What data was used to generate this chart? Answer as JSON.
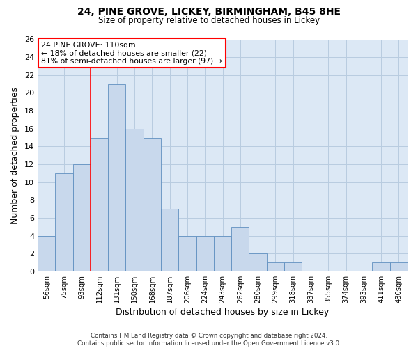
{
  "title": "24, PINE GROVE, LICKEY, BIRMINGHAM, B45 8HE",
  "subtitle": "Size of property relative to detached houses in Lickey",
  "xlabel": "Distribution of detached houses by size in Lickey",
  "ylabel": "Number of detached properties",
  "bar_color": "#c8d8ec",
  "bar_edge_color": "#6090c0",
  "bg_color": "#ffffff",
  "plot_bg_color": "#dce8f5",
  "grid_color": "#b8cce0",
  "categories": [
    "56sqm",
    "75sqm",
    "93sqm",
    "112sqm",
    "131sqm",
    "150sqm",
    "168sqm",
    "187sqm",
    "206sqm",
    "224sqm",
    "243sqm",
    "262sqm",
    "280sqm",
    "299sqm",
    "318sqm",
    "337sqm",
    "355sqm",
    "374sqm",
    "393sqm",
    "411sqm",
    "430sqm"
  ],
  "values": [
    4,
    11,
    12,
    15,
    21,
    16,
    15,
    7,
    4,
    4,
    4,
    5,
    2,
    1,
    1,
    0,
    0,
    0,
    0,
    1,
    1
  ],
  "ylim": [
    0,
    26
  ],
  "yticks": [
    0,
    2,
    4,
    6,
    8,
    10,
    12,
    14,
    16,
    18,
    20,
    22,
    24,
    26
  ],
  "red_line_index": 3,
  "annotation_title": "24 PINE GROVE: 110sqm",
  "annotation_line1": "← 18% of detached houses are smaller (22)",
  "annotation_line2": "81% of semi-detached houses are larger (97) →",
  "footer_line1": "Contains HM Land Registry data © Crown copyright and database right 2024.",
  "footer_line2": "Contains public sector information licensed under the Open Government Licence v3.0."
}
